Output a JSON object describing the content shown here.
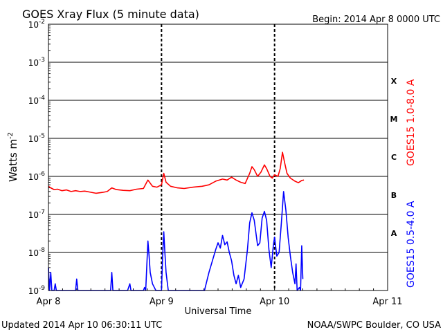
{
  "chart_data": {
    "type": "line",
    "title": "GOES Xray Flux (5 minute data)",
    "begin": "Begin:  2014 Apr 8 0000 UTC",
    "ylabel_main": "Watts m",
    "ylabel_sup": "-2",
    "xlabel": "Universal Time",
    "y_scale": "log",
    "ylim": [
      1e-09,
      0.01
    ],
    "y_ticks": [
      {
        "base": "10",
        "exp": "-2",
        "value": 0.01
      },
      {
        "base": "10",
        "exp": "-3",
        "value": 0.001
      },
      {
        "base": "10",
        "exp": "-4",
        "value": 0.0001
      },
      {
        "base": "10",
        "exp": "-5",
        "value": 1e-05
      },
      {
        "base": "10",
        "exp": "-6",
        "value": 1e-06
      },
      {
        "base": "10",
        "exp": "-7",
        "value": 1e-07
      },
      {
        "base": "10",
        "exp": "-8",
        "value": 1e-08
      },
      {
        "base": "10",
        "exp": "-9",
        "value": 1e-09
      }
    ],
    "x_ticks": [
      "Apr 8",
      "Apr 9",
      "Apr 10",
      "Apr 11"
    ],
    "xlim_days": [
      0,
      3
    ],
    "grid": true,
    "flare_classes": [
      {
        "label": "X",
        "value": 0.00032
      },
      {
        "label": "M",
        "value": 3.2e-05
      },
      {
        "label": "C",
        "value": 3.2e-06
      },
      {
        "label": "B",
        "value": 3.2e-07
      },
      {
        "label": "A",
        "value": 3.2e-08
      }
    ],
    "series": [
      {
        "name": "GOES15 1.0-8.0 A",
        "color": "#ff0000",
        "points": [
          [
            0.0,
            5.5e-07
          ],
          [
            0.02,
            5e-07
          ],
          [
            0.05,
            4.5e-07
          ],
          [
            0.08,
            4.6e-07
          ],
          [
            0.12,
            4.2e-07
          ],
          [
            0.16,
            4.4e-07
          ],
          [
            0.2,
            4e-07
          ],
          [
            0.24,
            4.2e-07
          ],
          [
            0.28,
            4e-07
          ],
          [
            0.32,
            4.1e-07
          ],
          [
            0.36,
            3.9e-07
          ],
          [
            0.42,
            3.6e-07
          ],
          [
            0.48,
            3.8e-07
          ],
          [
            0.52,
            4e-07
          ],
          [
            0.56,
            5e-07
          ],
          [
            0.6,
            4.5e-07
          ],
          [
            0.66,
            4.3e-07
          ],
          [
            0.72,
            4.2e-07
          ],
          [
            0.78,
            4.6e-07
          ],
          [
            0.84,
            4.8e-07
          ],
          [
            0.88,
            8e-07
          ],
          [
            0.92,
            5.5e-07
          ],
          [
            0.96,
            5.2e-07
          ],
          [
            1.0,
            6e-07
          ],
          [
            1.02,
            1.2e-06
          ],
          [
            1.04,
            7e-07
          ],
          [
            1.08,
            5.5e-07
          ],
          [
            1.14,
            5e-07
          ],
          [
            1.2,
            4.8e-07
          ],
          [
            1.28,
            5.2e-07
          ],
          [
            1.36,
            5.5e-07
          ],
          [
            1.42,
            6e-07
          ],
          [
            1.48,
            7.5e-07
          ],
          [
            1.54,
            8.5e-07
          ],
          [
            1.58,
            8e-07
          ],
          [
            1.62,
            9.5e-07
          ],
          [
            1.66,
            8e-07
          ],
          [
            1.7,
            7e-07
          ],
          [
            1.74,
            6.5e-07
          ],
          [
            1.78,
            1.2e-06
          ],
          [
            1.8,
            1.8e-06
          ],
          [
            1.82,
            1.5e-06
          ],
          [
            1.85,
            1e-06
          ],
          [
            1.88,
            1.3e-06
          ],
          [
            1.91,
            2e-06
          ],
          [
            1.93,
            1.6e-06
          ],
          [
            1.96,
            1e-06
          ],
          [
            1.98,
            9e-07
          ],
          [
            2.0,
            1.1e-06
          ],
          [
            2.03,
            1e-06
          ],
          [
            2.05,
            1.6e-06
          ],
          [
            2.07,
            4.3e-06
          ],
          [
            2.09,
            2.2e-06
          ],
          [
            2.11,
            1.2e-06
          ],
          [
            2.14,
            9e-07
          ],
          [
            2.18,
            7.5e-07
          ],
          [
            2.21,
            6.8e-07
          ],
          [
            2.24,
            7.8e-07
          ],
          [
            2.26,
            8e-07
          ]
        ]
      },
      {
        "name": "GOES15 0.5-4.0 A",
        "color": "#0000ff",
        "points": [
          [
            0.0,
            4e-09
          ],
          [
            0.01,
            1e-09
          ],
          [
            0.02,
            3e-09
          ],
          [
            0.03,
            1e-09
          ],
          [
            0.05,
            1e-09
          ],
          [
            0.06,
            1.5e-09
          ],
          [
            0.07,
            1e-09
          ],
          [
            0.24,
            1e-09
          ],
          [
            0.25,
            2e-09
          ],
          [
            0.26,
            1e-09
          ],
          [
            0.55,
            1e-09
          ],
          [
            0.56,
            3e-09
          ],
          [
            0.57,
            1e-09
          ],
          [
            0.7,
            1e-09
          ],
          [
            0.72,
            1.5e-09
          ],
          [
            0.73,
            1e-09
          ],
          [
            0.84,
            1e-09
          ],
          [
            0.85,
            1.2e-09
          ],
          [
            0.86,
            1e-09
          ],
          [
            0.88,
            2e-08
          ],
          [
            0.89,
            8e-09
          ],
          [
            0.9,
            3e-09
          ],
          [
            0.92,
            1.5e-09
          ],
          [
            0.95,
            1e-09
          ],
          [
            1.0,
            1e-09
          ],
          [
            1.01,
            8e-09
          ],
          [
            1.02,
            3.5e-08
          ],
          [
            1.03,
            1e-08
          ],
          [
            1.04,
            3e-09
          ],
          [
            1.06,
            1e-09
          ],
          [
            1.38,
            1e-09
          ],
          [
            1.42,
            3e-09
          ],
          [
            1.45,
            6e-09
          ],
          [
            1.48,
            1.2e-08
          ],
          [
            1.5,
            1.8e-08
          ],
          [
            1.52,
            1.3e-08
          ],
          [
            1.54,
            2.8e-08
          ],
          [
            1.56,
            1.6e-08
          ],
          [
            1.58,
            1.9e-08
          ],
          [
            1.6,
            1e-08
          ],
          [
            1.62,
            6e-09
          ],
          [
            1.64,
            2.5e-09
          ],
          [
            1.66,
            1.5e-09
          ],
          [
            1.68,
            2.5e-09
          ],
          [
            1.7,
            1.2e-09
          ],
          [
            1.73,
            2e-09
          ],
          [
            1.76,
            1.2e-08
          ],
          [
            1.78,
            6e-08
          ],
          [
            1.8,
            1.1e-07
          ],
          [
            1.82,
            7e-08
          ],
          [
            1.85,
            1.5e-08
          ],
          [
            1.87,
            1.8e-08
          ],
          [
            1.89,
            8e-08
          ],
          [
            1.91,
            1.2e-07
          ],
          [
            1.93,
            7e-08
          ],
          [
            1.95,
            1.2e-08
          ],
          [
            1.97,
            4e-09
          ],
          [
            1.99,
            1.6e-08
          ],
          [
            2.0,
            2.5e-08
          ],
          [
            2.02,
            8e-09
          ],
          [
            2.04,
            1e-08
          ],
          [
            2.06,
            6e-08
          ],
          [
            2.08,
            4e-07
          ],
          [
            2.1,
            1.3e-07
          ],
          [
            2.12,
            2.5e-08
          ],
          [
            2.14,
            8e-09
          ],
          [
            2.16,
            3e-09
          ],
          [
            2.18,
            1.5e-09
          ],
          [
            2.19,
            5e-09
          ],
          [
            2.2,
            1e-09
          ],
          [
            2.22,
            1.2e-09
          ],
          [
            2.23,
            1e-09
          ],
          [
            2.24,
            1.5e-08
          ],
          [
            2.25,
            2e-09
          ]
        ]
      }
    ]
  },
  "footer": {
    "updated": "Updated 2014 Apr 10 06:30:11 UTC",
    "source": "NOAA/SWPC Boulder, CO USA"
  }
}
